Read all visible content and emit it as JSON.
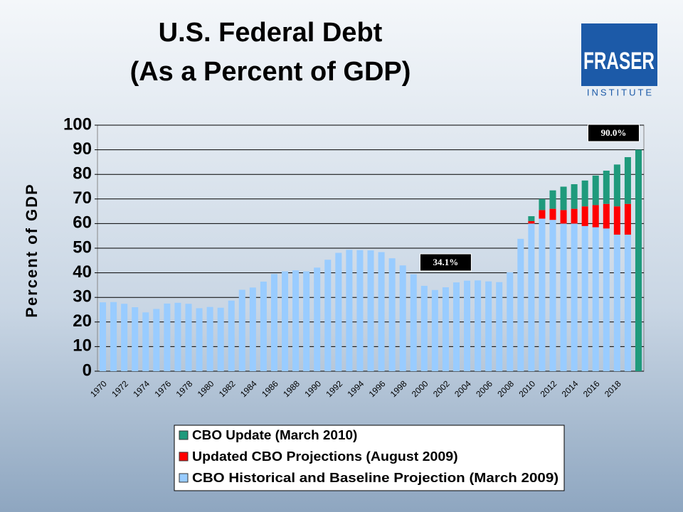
{
  "chart_data": {
    "type": "stacked_bar",
    "title": [
      "U.S. Federal Debt",
      "(As a Percent of GDP)"
    ],
    "logo": {
      "name": "FRASER",
      "subtitle": "INSTITUTE"
    },
    "ylabel": "Percent of GDP",
    "categories": [
      "1970",
      null,
      "1972",
      null,
      "1974",
      null,
      "1976",
      null,
      "1978",
      null,
      "1980",
      null,
      "1982",
      null,
      "1984",
      null,
      "1986",
      null,
      "1988",
      null,
      "1990",
      null,
      "1992",
      null,
      "1994",
      null,
      "1996",
      null,
      "1998",
      null,
      "2000",
      null,
      "2002",
      null,
      "2004",
      null,
      "2006",
      null,
      "2008",
      null,
      "2010",
      null,
      "2012",
      null,
      "2014",
      null,
      "2016",
      null,
      "2018",
      null,
      null
    ],
    "series": [
      {
        "name": "CBO Historical and Baseline Projection (March 2009)",
        "color": "#99ccff",
        "values": [
          28.0,
          28.1,
          27.4,
          26.0,
          23.9,
          25.3,
          27.5,
          27.8,
          27.4,
          25.6,
          26.1,
          25.8,
          28.7,
          33.1,
          34.0,
          36.4,
          39.5,
          40.6,
          41.0,
          40.6,
          42.1,
          45.3,
          48.1,
          49.3,
          49.2,
          49.1,
          48.4,
          45.9,
          43.0,
          39.4,
          34.7,
          33.0,
          34.1,
          36.1,
          36.8,
          36.9,
          36.5,
          36.2,
          40.2,
          53.8,
          60.0,
          62.0,
          61.5,
          60.0,
          60.0,
          59.0,
          58.5,
          58.0,
          55.5,
          55.5,
          null
        ],
        "value_labels": [
          null,
          null,
          null,
          null,
          null,
          null,
          null,
          null,
          null,
          null,
          null,
          null,
          null,
          null,
          null,
          null,
          null,
          null,
          null,
          null,
          null,
          null,
          null,
          null,
          null,
          null,
          null,
          null,
          null,
          null,
          null,
          null,
          "34.1%",
          null,
          null,
          null,
          null,
          null,
          null,
          null,
          null,
          null,
          null,
          null,
          null,
          null,
          null,
          null,
          null,
          null,
          null
        ]
      },
      {
        "name": "Updated CBO Projections (August 2009)",
        "color": "#ff0000",
        "values": [
          null,
          null,
          null,
          null,
          null,
          null,
          null,
          null,
          null,
          null,
          null,
          null,
          null,
          null,
          null,
          null,
          null,
          null,
          null,
          null,
          null,
          null,
          null,
          null,
          null,
          null,
          null,
          null,
          null,
          null,
          null,
          null,
          null,
          null,
          null,
          null,
          null,
          null,
          null,
          null,
          1.0,
          3.5,
          4.5,
          5.5,
          6.0,
          8.0,
          9.0,
          10.0,
          11.5,
          12.5,
          null
        ]
      },
      {
        "name": "CBO Update (March 2010)",
        "color": "#1f9a7c",
        "values": [
          null,
          null,
          null,
          null,
          null,
          null,
          null,
          null,
          null,
          null,
          null,
          null,
          null,
          null,
          null,
          null,
          null,
          null,
          null,
          null,
          null,
          null,
          null,
          null,
          null,
          null,
          null,
          null,
          null,
          null,
          null,
          null,
          null,
          null,
          null,
          null,
          null,
          null,
          null,
          null,
          2.0,
          4.5,
          7.5,
          9.5,
          10.0,
          10.5,
          12.0,
          13.5,
          17.0,
          19.0,
          90.0
        ],
        "value_labels": [
          null,
          null,
          null,
          null,
          null,
          null,
          null,
          null,
          null,
          null,
          null,
          null,
          null,
          null,
          null,
          null,
          null,
          null,
          null,
          null,
          null,
          null,
          null,
          null,
          null,
          null,
          null,
          null,
          null,
          null,
          null,
          null,
          null,
          null,
          null,
          null,
          null,
          null,
          null,
          null,
          null,
          null,
          null,
          null,
          null,
          null,
          null,
          null,
          null,
          null,
          "90.0%"
        ]
      }
    ],
    "ylim": [
      0,
      100
    ],
    "yticks": [
      0,
      10,
      20,
      30,
      40,
      50,
      60,
      70,
      80,
      90,
      100
    ],
    "grid": true
  }
}
